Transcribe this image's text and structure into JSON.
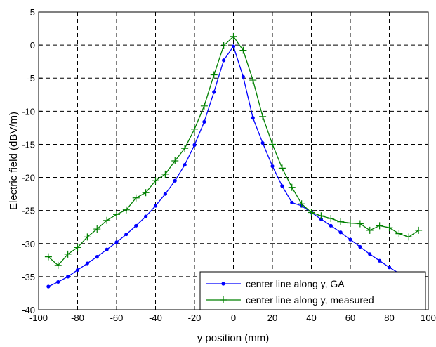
{
  "chart_data": {
    "type": "line",
    "xlabel": "y position (mm)",
    "ylabel": "Electric field (dBV/m)",
    "xlim": [
      -100,
      100
    ],
    "ylim": [
      -40,
      5
    ],
    "x_ticks": [
      -100,
      -80,
      -60,
      -40,
      -20,
      0,
      20,
      40,
      60,
      80,
      100
    ],
    "y_ticks": [
      5,
      0,
      -5,
      -10,
      -15,
      -20,
      -25,
      -30,
      -35,
      -40
    ],
    "grid": true,
    "legend_position": "bottom-right",
    "series": [
      {
        "name": "center line along y, GA",
        "color": "#0000ff",
        "marker": "dot",
        "x": [
          -95,
          -90,
          -85,
          -80,
          -75,
          -70,
          -65,
          -60,
          -55,
          -50,
          -45,
          -40,
          -35,
          -30,
          -25,
          -20,
          -15,
          -10,
          -5,
          0,
          5,
          10,
          15,
          20,
          25,
          30,
          35,
          40,
          45,
          50,
          55,
          60,
          65,
          70,
          75,
          80,
          85,
          90,
          95
        ],
        "y": [
          -36.5,
          -35.8,
          -35.0,
          -34.0,
          -33.0,
          -32.0,
          -30.9,
          -29.8,
          -28.6,
          -27.3,
          -25.9,
          -24.3,
          -22.5,
          -20.5,
          -18.1,
          -15.1,
          -11.6,
          -7.1,
          -2.3,
          -0.2,
          -4.8,
          -11.0,
          -14.8,
          -18.3,
          -21.3,
          -23.8,
          -24.3,
          -25.3,
          -26.3,
          -27.3,
          -28.3,
          -29.4,
          -30.5,
          -31.6,
          -32.6,
          -33.6,
          -34.5,
          -35.4,
          -36.2
        ]
      },
      {
        "name": "center line along y, measured",
        "color": "#008000",
        "marker": "plus",
        "x": [
          -95,
          -90,
          -85,
          -80,
          -75,
          -70,
          -65,
          -60,
          -55,
          -50,
          -45,
          -40,
          -35,
          -30,
          -25,
          -20,
          -15,
          -10,
          -5,
          0,
          5,
          10,
          15,
          20,
          25,
          30,
          35,
          40,
          45,
          50,
          55,
          60,
          65,
          70,
          75,
          80,
          85,
          90,
          95
        ],
        "y": [
          -32.0,
          -33.3,
          -31.6,
          -30.6,
          -29.0,
          -27.8,
          -26.5,
          -25.6,
          -24.9,
          -23.1,
          -22.3,
          -20.5,
          -19.5,
          -17.5,
          -15.6,
          -12.7,
          -9.2,
          -4.5,
          -0.1,
          1.3,
          -0.8,
          -5.3,
          -10.8,
          -15.0,
          -18.6,
          -21.5,
          -24.0,
          -25.3,
          -25.8,
          -26.2,
          -26.7,
          -26.9,
          -27.0,
          -28.0,
          -27.3,
          -27.6,
          -28.5,
          -29.0,
          -28.0
        ]
      }
    ]
  }
}
